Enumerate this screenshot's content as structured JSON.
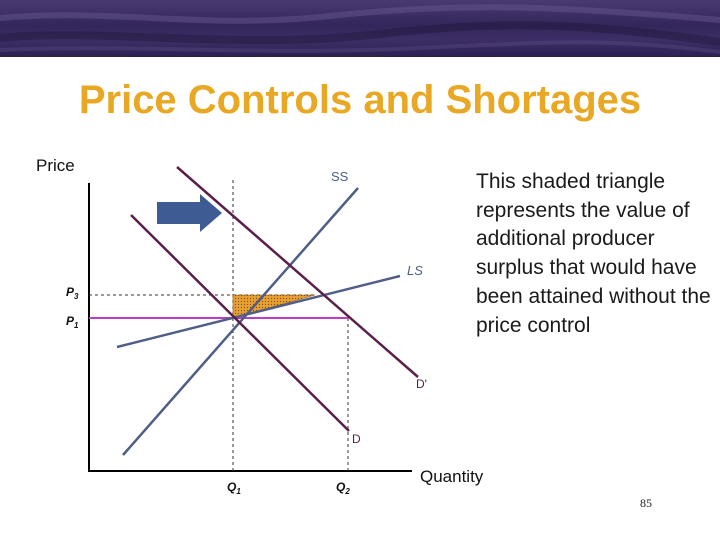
{
  "slide": {
    "title": "Price Controls and Shortages",
    "note": "This shaded triangle represents the value of additional producer surplus that would have been attained without the price control",
    "page_number": "85"
  },
  "diagram": {
    "axis_y_label": "Price",
    "axis_x_label": "Quantity",
    "curve_labels": {
      "short_run_supply": "SS",
      "long_run_supply": "LS",
      "demand_new": "D'",
      "demand": "D"
    },
    "price_labels": {
      "p3": "P",
      "p3_sub": "3",
      "p1": "P",
      "p1_sub": "1"
    },
    "quantity_labels": {
      "q1": "Q",
      "q1_sub": "1",
      "q2": "Q",
      "q2_sub": "2"
    },
    "colors": {
      "supply": "#4e5e86",
      "demand": "#5a1f4a",
      "price_control": "#c03cc8",
      "arrow": "#3f5b93",
      "shade": "#e8a030",
      "title": "#e8a823"
    }
  }
}
